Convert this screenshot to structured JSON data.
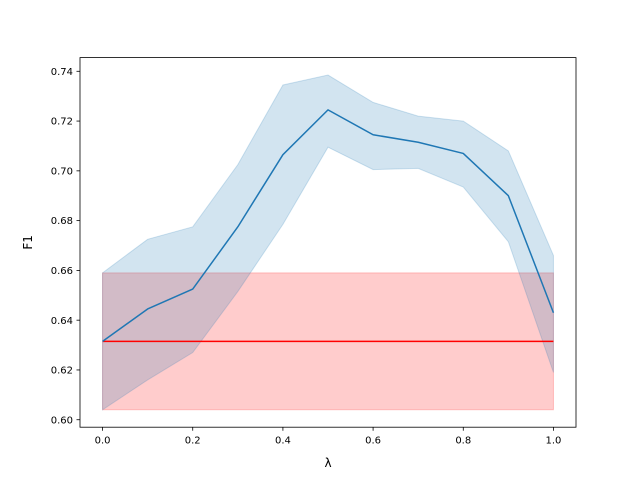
{
  "chart_data": {
    "type": "line",
    "xlabel": "λ",
    "ylabel": "F1",
    "xlim": [
      -0.05,
      1.05
    ],
    "ylim": [
      0.597,
      0.7455
    ],
    "grid": false,
    "x_ticks": [
      0.0,
      0.2,
      0.4,
      0.6,
      0.8,
      1.0
    ],
    "x_tick_labels": [
      "0.0",
      "0.2",
      "0.4",
      "0.6",
      "0.8",
      "1.0"
    ],
    "y_ticks": [
      0.6,
      0.62,
      0.64,
      0.66,
      0.68,
      0.7,
      0.72,
      0.74
    ],
    "y_tick_labels": [
      "0.60",
      "0.62",
      "0.64",
      "0.66",
      "0.68",
      "0.70",
      "0.72",
      "0.74"
    ],
    "series": [
      {
        "x": [
          0.0,
          0.1,
          0.2,
          0.3,
          0.4,
          0.5,
          0.6,
          0.7,
          0.8,
          0.9,
          1.0
        ],
        "values": [
          0.6315,
          0.6445,
          0.6525,
          0.6775,
          0.7065,
          0.7245,
          0.7145,
          0.7115,
          0.707,
          0.69,
          0.643
        ],
        "band_upper": [
          0.659,
          0.6725,
          0.6775,
          0.7025,
          0.7345,
          0.7385,
          0.7275,
          0.722,
          0.72,
          0.708,
          0.666
        ],
        "band_lower": [
          0.604,
          0.616,
          0.627,
          0.6515,
          0.6785,
          0.7095,
          0.7005,
          0.701,
          0.6935,
          0.6715,
          0.619
        ],
        "color": "#1f77b4"
      },
      {
        "x": [
          0.0,
          1.0
        ],
        "values": [
          0.6315,
          0.6315
        ],
        "band_upper": [
          0.659,
          0.659
        ],
        "band_lower": [
          0.604,
          0.604
        ],
        "color": "#ff0000"
      }
    ]
  }
}
